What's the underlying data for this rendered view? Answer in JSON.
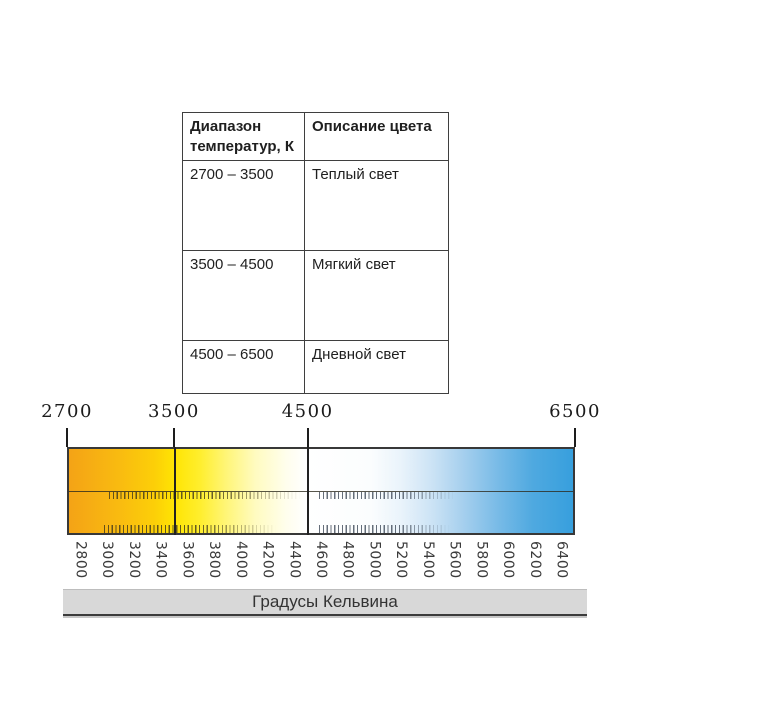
{
  "table": {
    "headers": [
      "Диапазон температур, К",
      "Описание цвета"
    ],
    "rows": [
      {
        "range": "2700 – 3500",
        "description": "Теплый свет"
      },
      {
        "range": "3500 – 4500",
        "description": "Мягкий свет"
      },
      {
        "range": "4500 – 6500",
        "description": "Дневной свет"
      }
    ]
  },
  "scale": {
    "unit": "K",
    "min": 2700,
    "max": 6500,
    "top_labels": [
      2700,
      3500,
      4500,
      6500
    ],
    "tick_labels": [
      2800,
      3000,
      3200,
      3400,
      3600,
      3800,
      4000,
      4200,
      4400,
      4600,
      4800,
      5000,
      5200,
      5400,
      5600,
      5800,
      6000,
      6200,
      6400
    ],
    "axis_title": "Градусы Кельвина",
    "gradient_stops": [
      {
        "pos": 0,
        "color": "#F4A316"
      },
      {
        "pos": 10,
        "color": "#F9BB10"
      },
      {
        "pos": 17,
        "color": "#FCCF08"
      },
      {
        "pos": 21,
        "color": "#FFE503"
      },
      {
        "pos": 26,
        "color": "#FFEE2E"
      },
      {
        "pos": 31,
        "color": "#FFF575"
      },
      {
        "pos": 37,
        "color": "#FFFBC0"
      },
      {
        "pos": 43,
        "color": "#FFFEEC"
      },
      {
        "pos": 47,
        "color": "#FFFFFF"
      },
      {
        "pos": 60,
        "color": "#FBFDFE"
      },
      {
        "pos": 66,
        "color": "#E9F3FB"
      },
      {
        "pos": 72,
        "color": "#CCE3F5"
      },
      {
        "pos": 78,
        "color": "#A7D0EE"
      },
      {
        "pos": 85,
        "color": "#79BBE7"
      },
      {
        "pos": 92,
        "color": "#4FA9E0"
      },
      {
        "pos": 100,
        "color": "#379FDD"
      }
    ]
  }
}
